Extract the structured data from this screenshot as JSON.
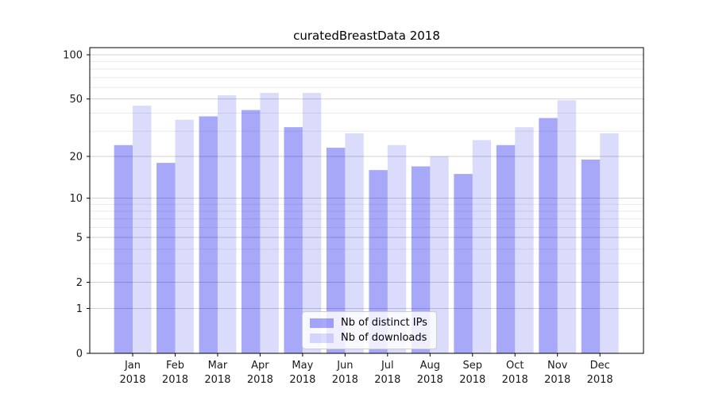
{
  "chart_data": {
    "type": "bar",
    "title": "curatedBreastData 2018",
    "categories": [
      "Jan",
      "Feb",
      "Mar",
      "Apr",
      "May",
      "Jun",
      "Jul",
      "Aug",
      "Sep",
      "Oct",
      "Nov",
      "Dec"
    ],
    "x_year_label": "2018",
    "series": [
      {
        "name": "Nb of distinct IPs",
        "color": "#0000ea",
        "opacity": 0.34,
        "values": [
          24,
          18,
          38,
          42,
          32,
          23,
          16,
          17,
          15,
          24,
          37,
          19
        ]
      },
      {
        "name": "Nb of downloads",
        "color": "#0000ea",
        "opacity": 0.14,
        "values": [
          45,
          36,
          53,
          55,
          55,
          29,
          24,
          20,
          26,
          32,
          49,
          29
        ]
      }
    ],
    "yscale": "log1p",
    "ylim": [
      0,
      113
    ],
    "y_major_ticks": [
      0,
      1,
      2,
      5,
      10,
      20,
      50,
      100
    ],
    "y_major_tick_labels": [
      "0",
      "1",
      "2",
      "5",
      "10",
      "20",
      "50",
      "100"
    ],
    "y_minor_ticks": [
      3,
      4,
      6,
      7,
      8,
      9,
      30,
      40,
      60,
      70,
      80,
      90
    ],
    "grid": "both",
    "legend_position": "lower center",
    "colors": {
      "major_grid": "#d0d0d0",
      "minor_grid": "#ebebeb",
      "spine": "#000000",
      "tick_label": "#1a1a1a"
    }
  }
}
